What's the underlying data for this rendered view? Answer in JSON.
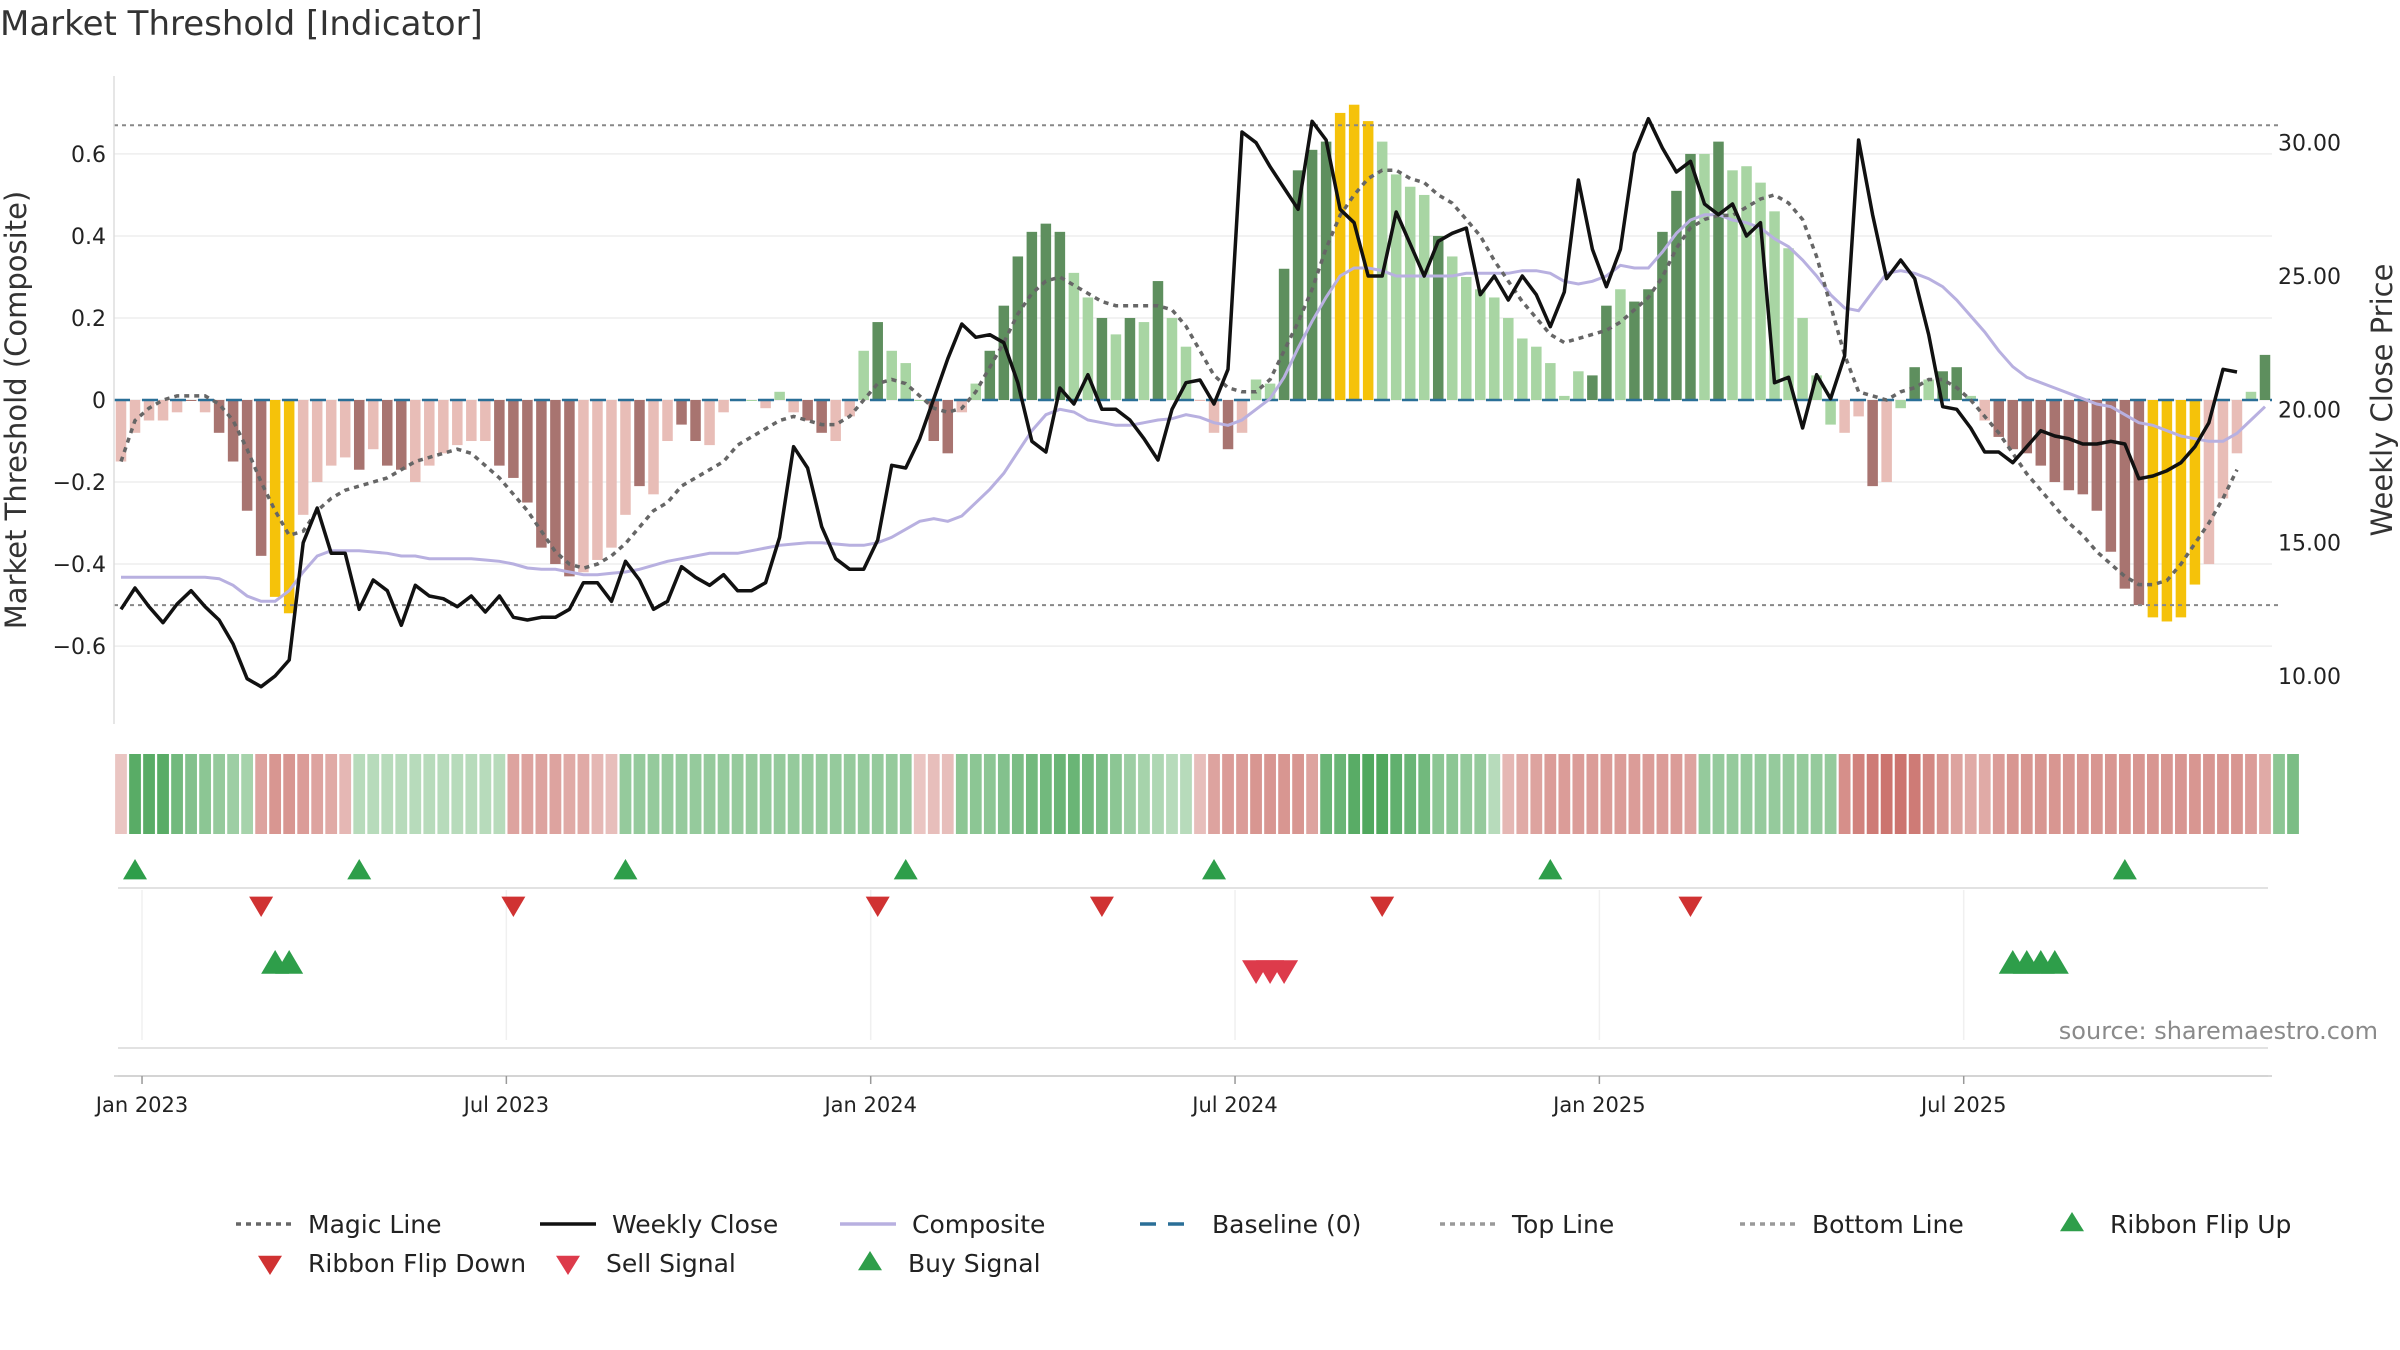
{
  "title": "Market Threshold [Indicator]",
  "source": "source: sharemaestro.com",
  "colors": {
    "strong_green": "#5e8f5e",
    "light_green": "#a8d5a3",
    "strong_red": "#a87470",
    "light_red": "#e8bdb7",
    "extreme": "#f5c20a",
    "close_line": "#111111",
    "magic_line": "#666666",
    "composite_line": "#b8b0e0",
    "baseline": "#2a6f97",
    "buy": "#2e9e4a",
    "sell": "#dd3b4b",
    "flip_down": "#d03232"
  },
  "chart_data": {
    "type": "bar",
    "title": "Market Threshold [Indicator]",
    "ylabel": "Market Threshold (Composite)",
    "ylabel_right": "Weekly Close Price",
    "ylim": [
      -0.79,
      0.79
    ],
    "ylim_right": [
      8.2,
      32.5
    ],
    "yticks": [
      -0.6,
      -0.4,
      -0.2,
      0,
      0.2,
      0.4,
      0.6
    ],
    "ytick_labels": [
      "−0.6",
      "−0.4",
      "−0.2",
      "0",
      "0.2",
      "0.4",
      "0.6"
    ],
    "yticks_right": [
      10,
      15,
      20,
      25,
      30
    ],
    "ytick_labels_right": [
      "10.00",
      "15.00",
      "20.00",
      "25.00",
      "30.00"
    ],
    "date_labels": [
      "Jan 2023",
      "Jul 2023",
      "Jan 2024",
      "Jul 2024",
      "Jan 2025",
      "Jul 2025"
    ],
    "weeks_per_label": 26,
    "first_label_week": 2,
    "top_line": 0.67,
    "bottom_line": -0.5,
    "baseline": 0,
    "grid": true,
    "composite": [
      -0.15,
      -0.08,
      -0.05,
      -0.05,
      -0.03,
      0,
      -0.03,
      -0.08,
      -0.15,
      -0.27,
      -0.38,
      -0.48,
      -0.52,
      -0.28,
      -0.2,
      -0.16,
      -0.14,
      -0.17,
      -0.12,
      -0.16,
      -0.17,
      -0.2,
      -0.16,
      -0.13,
      -0.11,
      -0.1,
      -0.1,
      -0.16,
      -0.19,
      -0.25,
      -0.36,
      -0.4,
      -0.43,
      -0.42,
      -0.39,
      -0.36,
      -0.28,
      -0.21,
      -0.23,
      -0.1,
      -0.06,
      -0.1,
      -0.11,
      -0.03,
      0,
      0,
      -0.02,
      0.02,
      -0.03,
      -0.05,
      -0.08,
      -0.1,
      -0.04,
      0.12,
      0.19,
      0.12,
      0.09,
      0,
      -0.1,
      -0.13,
      -0.03,
      0.04,
      0.12,
      0.23,
      0.35,
      0.41,
      0.43,
      0.41,
      0.31,
      0.25,
      0.2,
      0.16,
      0.2,
      0.19,
      0.29,
      0.2,
      0.13,
      0,
      -0.08,
      -0.12,
      -0.08,
      0.05,
      0.04,
      0.32,
      0.56,
      0.61,
      0.63,
      0.7,
      0.72,
      0.68,
      0.63,
      0.55,
      0.52,
      0.5,
      0.4,
      0.35,
      0.3,
      0.27,
      0.25,
      0.2,
      0.15,
      0.13,
      0.09,
      0.01,
      0.07,
      0.06,
      0.23,
      0.27,
      0.24,
      0.27,
      0.41,
      0.51,
      0.6,
      0.6,
      0.63,
      0.56,
      0.57,
      0.53,
      0.46,
      0.37,
      0.2,
      0.06,
      -0.06,
      -0.08,
      -0.04,
      -0.21,
      -0.2,
      -0.02,
      0.08,
      0.05,
      0.07,
      0.08,
      0.01,
      -0.05,
      -0.09,
      -0.12,
      -0.13,
      -0.16,
      -0.2,
      -0.22,
      -0.23,
      -0.27,
      -0.37,
      -0.46,
      -0.5,
      -0.53,
      -0.54,
      -0.53,
      -0.45,
      -0.4,
      -0.24,
      -0.13,
      0.02,
      0.11
    ],
    "bar_class": [
      "lr",
      "lr",
      "lr",
      "lr",
      "lr",
      "sr",
      "lr",
      "sr",
      "sr",
      "sr",
      "sr",
      "ex",
      "ex",
      "lr",
      "lr",
      "lr",
      "lr",
      "sr",
      "lr",
      "sr",
      "sr",
      "lr",
      "lr",
      "lr",
      "lr",
      "lr",
      "lr",
      "sr",
      "sr",
      "sr",
      "sr",
      "sr",
      "sr",
      "lr",
      "lr",
      "lr",
      "lr",
      "sr",
      "lr",
      "lr",
      "sr",
      "sr",
      "lr",
      "lr",
      "lr",
      "lg",
      "lr",
      "lg",
      "lr",
      "sr",
      "sr",
      "lr",
      "lr",
      "lg",
      "sg",
      "lg",
      "lg",
      "lg",
      "sr",
      "sr",
      "lr",
      "lg",
      "sg",
      "sg",
      "sg",
      "sg",
      "sg",
      "sg",
      "lg",
      "lg",
      "sg",
      "lg",
      "sg",
      "lg",
      "sg",
      "lg",
      "lg",
      "lr",
      "lr",
      "sr",
      "lr",
      "lg",
      "lg",
      "sg",
      "sg",
      "sg",
      "sg",
      "ex",
      "ex",
      "ex",
      "lg",
      "lg",
      "lg",
      "lg",
      "sg",
      "lg",
      "lg",
      "lg",
      "lg",
      "lg",
      "lg",
      "lg",
      "lg",
      "lg",
      "lg",
      "sg",
      "sg",
      "lg",
      "sg",
      "sg",
      "sg",
      "sg",
      "sg",
      "lg",
      "sg",
      "lg",
      "lg",
      "lg",
      "lg",
      "lg",
      "lg",
      "lg",
      "lg",
      "lr",
      "lr",
      "sr",
      "lr",
      "lg",
      "sg",
      "lg",
      "sg",
      "sg",
      "lg",
      "lr",
      "sr",
      "sr",
      "sr",
      "sr",
      "sr",
      "sr",
      "sr",
      "sr",
      "sr",
      "sr",
      "sr",
      "ex",
      "ex",
      "ex",
      "ex",
      "lr",
      "lr",
      "lr",
      "lg",
      "sg"
    ],
    "magic_line": [
      -0.15,
      -0.05,
      -0.02,
      0,
      0.01,
      0.01,
      0.01,
      -0.01,
      -0.05,
      -0.12,
      -0.2,
      -0.27,
      -0.33,
      -0.32,
      -0.27,
      -0.24,
      -0.22,
      -0.21,
      -0.2,
      -0.19,
      -0.17,
      -0.15,
      -0.14,
      -0.13,
      -0.12,
      -0.13,
      -0.16,
      -0.19,
      -0.23,
      -0.27,
      -0.32,
      -0.37,
      -0.4,
      -0.41,
      -0.4,
      -0.38,
      -0.35,
      -0.31,
      -0.27,
      -0.25,
      -0.21,
      -0.19,
      -0.17,
      -0.15,
      -0.11,
      -0.09,
      -0.07,
      -0.05,
      -0.04,
      -0.05,
      -0.06,
      -0.06,
      -0.04,
      0,
      0.04,
      0.05,
      0.04,
      0.01,
      -0.02,
      -0.03,
      -0.02,
      0.02,
      0.08,
      0.14,
      0.21,
      0.26,
      0.29,
      0.3,
      0.28,
      0.26,
      0.24,
      0.23,
      0.23,
      0.23,
      0.23,
      0.22,
      0.18,
      0.12,
      0.06,
      0.03,
      0.02,
      0.02,
      0.05,
      0.12,
      0.19,
      0.27,
      0.37,
      0.45,
      0.5,
      0.54,
      0.56,
      0.56,
      0.54,
      0.53,
      0.5,
      0.48,
      0.44,
      0.4,
      0.34,
      0.29,
      0.24,
      0.2,
      0.16,
      0.14,
      0.15,
      0.16,
      0.17,
      0.19,
      0.22,
      0.25,
      0.3,
      0.37,
      0.42,
      0.44,
      0.45,
      0.45,
      0.47,
      0.49,
      0.5,
      0.48,
      0.44,
      0.35,
      0.23,
      0.11,
      0.02,
      0.01,
      0,
      0.02,
      0.03,
      0.05,
      0.05,
      0.03,
      0,
      -0.04,
      -0.08,
      -0.13,
      -0.18,
      -0.22,
      -0.26,
      -0.3,
      -0.33,
      -0.37,
      -0.4,
      -0.43,
      -0.45,
      -0.45,
      -0.44,
      -0.4,
      -0.35,
      -0.3,
      -0.24,
      -0.17
    ],
    "composite_line_y": [
      13.7,
      13.7,
      13.7,
      13.7,
      13.7,
      13.7,
      13.7,
      13.65,
      13.4,
      13,
      12.8,
      12.8,
      13.2,
      13.9,
      14.5,
      14.7,
      14.7,
      14.7,
      14.65,
      14.6,
      14.5,
      14.5,
      14.4,
      14.4,
      14.4,
      14.4,
      14.35,
      14.3,
      14.2,
      14.05,
      14,
      14,
      13.9,
      13.8,
      13.8,
      13.85,
      13.9,
      14,
      14.15,
      14.3,
      14.4,
      14.5,
      14.6,
      14.6,
      14.6,
      14.7,
      14.8,
      14.9,
      14.95,
      15,
      15,
      14.95,
      14.9,
      14.9,
      15,
      15.2,
      15.5,
      15.8,
      15.9,
      15.8,
      16,
      16.5,
      17,
      17.6,
      18.4,
      19.2,
      19.8,
      20,
      19.9,
      19.6,
      19.5,
      19.4,
      19.4,
      19.5,
      19.6,
      19.65,
      19.8,
      19.7,
      19.5,
      19.4,
      19.6,
      20,
      20.4,
      21.2,
      22.3,
      23.3,
      24.2,
      25,
      25.3,
      25.3,
      25.2,
      25,
      25,
      25,
      25,
      25,
      25.1,
      25.1,
      25.1,
      25.1,
      25.2,
      25.2,
      25.1,
      24.8,
      24.7,
      24.8,
      25,
      25.4,
      25.3,
      25.3,
      25.9,
      26.6,
      27.1,
      27.3,
      27.3,
      27.1,
      27,
      26.8,
      26.4,
      26.1,
      25.6,
      25,
      24.3,
      23.8,
      23.7,
      24.4,
      25.1,
      25.2,
      25.1,
      24.9,
      24.6,
      24.1,
      23.5,
      22.9,
      22.2,
      21.6,
      21.2,
      21,
      20.8,
      20.6,
      20.4,
      20.2,
      20.1,
      19.8,
      19.5,
      19.4,
      19.2,
      19,
      18.9,
      18.8,
      18.8,
      19.1,
      19.6,
      20.1
    ],
    "weekly_close": [
      12.5,
      13.3,
      12.6,
      12,
      12.7,
      13.2,
      12.6,
      12.1,
      11.2,
      9.9,
      9.6,
      10,
      10.6,
      15,
      16.3,
      14.6,
      14.6,
      12.5,
      13.6,
      13.2,
      11.9,
      13.4,
      13,
      12.9,
      12.6,
      13,
      12.4,
      13,
      12.2,
      12.1,
      12.2,
      12.2,
      12.5,
      13.5,
      13.5,
      12.8,
      14.3,
      13.6,
      12.5,
      12.8,
      14.1,
      13.7,
      13.4,
      13.8,
      13.2,
      13.2,
      13.5,
      15.2,
      18.6,
      17.8,
      15.6,
      14.4,
      14,
      14,
      15.1,
      17.9,
      17.8,
      18.9,
      20.4,
      21.9,
      23.2,
      22.7,
      22.8,
      22.5,
      21,
      18.8,
      18.4,
      20.8,
      20.2,
      21.3,
      20,
      20,
      19.6,
      18.9,
      18.1,
      20,
      21,
      21.1,
      20.2,
      21.5,
      30.4,
      30,
      29.1,
      28.3,
      27.5,
      30.8,
      30.1,
      27.5,
      27,
      25,
      25,
      27.4,
      26.2,
      25,
      26.3,
      26.6,
      26.8,
      24.3,
      25,
      24.1,
      25,
      24.3,
      23.1,
      24.4,
      28.6,
      26,
      24.6,
      26,
      29.6,
      30.9,
      29.8,
      28.9,
      29.3,
      27.7,
      27.3,
      27.7,
      26.5,
      27,
      21,
      21.2,
      19.3,
      21.3,
      20.4,
      22,
      30.1,
      27.3,
      24.9,
      25.6,
      24.9,
      22.8,
      20.1,
      20,
      19.3,
      18.4,
      18.4,
      18,
      18.6,
      19.2,
      19,
      18.9,
      18.7,
      18.7,
      18.8,
      18.7,
      17.4,
      17.5,
      17.7,
      18,
      18.6,
      19.5,
      21.5,
      21.4
    ],
    "ribbon": [
      -0.25,
      0.85,
      0.85,
      0.85,
      0.7,
      0.6,
      0.55,
      0.5,
      0.45,
      0.4,
      -0.5,
      -0.6,
      -0.6,
      -0.55,
      -0.5,
      -0.45,
      -0.35,
      0.3,
      0.3,
      0.3,
      0.3,
      0.3,
      0.3,
      0.3,
      0.3,
      0.3,
      0.3,
      0.3,
      -0.5,
      -0.5,
      -0.5,
      -0.5,
      -0.45,
      -0.45,
      -0.35,
      -0.3,
      0.5,
      0.5,
      0.5,
      0.5,
      0.5,
      0.5,
      0.5,
      0.5,
      0.5,
      0.5,
      0.5,
      0.5,
      0.5,
      0.5,
      0.5,
      0.5,
      0.5,
      0.5,
      0.5,
      0.5,
      0.5,
      -0.25,
      -0.3,
      -0.3,
      0.55,
      0.55,
      0.55,
      0.6,
      0.65,
      0.7,
      0.7,
      0.75,
      0.75,
      0.7,
      0.65,
      0.55,
      0.45,
      0.4,
      0.35,
      0.3,
      0.3,
      -0.3,
      -0.5,
      -0.55,
      -0.55,
      -0.6,
      -0.6,
      -0.6,
      -0.6,
      -0.5,
      0.75,
      0.75,
      0.85,
      0.9,
      0.9,
      0.8,
      0.75,
      0.7,
      0.55,
      0.55,
      0.5,
      0.5,
      0.3,
      -0.35,
      -0.45,
      -0.5,
      -0.55,
      -0.55,
      -0.55,
      -0.55,
      -0.55,
      -0.55,
      -0.55,
      -0.55,
      -0.55,
      -0.55,
      -0.5,
      0.5,
      0.5,
      0.5,
      0.5,
      0.5,
      0.5,
      0.5,
      0.5,
      0.5,
      0.5,
      -0.65,
      -0.75,
      -0.8,
      -0.85,
      -0.85,
      -0.8,
      -0.7,
      -0.6,
      -0.5,
      -0.45,
      -0.45,
      -0.55,
      -0.6,
      -0.6,
      -0.6,
      -0.6,
      -0.6,
      -0.6,
      -0.6,
      -0.6,
      -0.6,
      -0.6,
      -0.6,
      -0.6,
      -0.6,
      -0.6,
      -0.6,
      -0.6,
      -0.6,
      -0.55,
      -0.45,
      0.55,
      0.65
    ],
    "ribbon_flip_up_weeks": [
      1,
      17,
      36,
      56,
      78,
      102,
      143
    ],
    "ribbon_flip_down_weeks": [
      10,
      28,
      54,
      70,
      90,
      112
    ],
    "buy_signal_weeks": [
      11,
      12,
      135,
      136,
      137,
      138
    ],
    "sell_signal_weeks": [
      81,
      82,
      83
    ]
  },
  "legend": [
    {
      "label": "Magic Line",
      "type": "dotted-line",
      "color": "#666666"
    },
    {
      "label": "Weekly Close",
      "type": "solid-line",
      "color": "#111111"
    },
    {
      "label": "Composite",
      "type": "solid-line",
      "color": "#b8b0e0"
    },
    {
      "label": "Baseline (0)",
      "type": "dashed-line",
      "color": "#2a6f97"
    },
    {
      "label": "Top Line",
      "type": "dotted-line",
      "color": "#999999"
    },
    {
      "label": "Bottom Line",
      "type": "dotted-line",
      "color": "#999999"
    },
    {
      "label": "Ribbon Flip Up",
      "type": "triangle-up",
      "color": "#2e9e4a"
    },
    {
      "label": "Ribbon Flip Down",
      "type": "triangle-down",
      "color": "#d03232"
    },
    {
      "label": "Sell Signal",
      "type": "triangle-down",
      "color": "#dd3b4b"
    },
    {
      "label": "Buy Signal",
      "type": "triangle-up",
      "color": "#2e9e4a"
    }
  ]
}
